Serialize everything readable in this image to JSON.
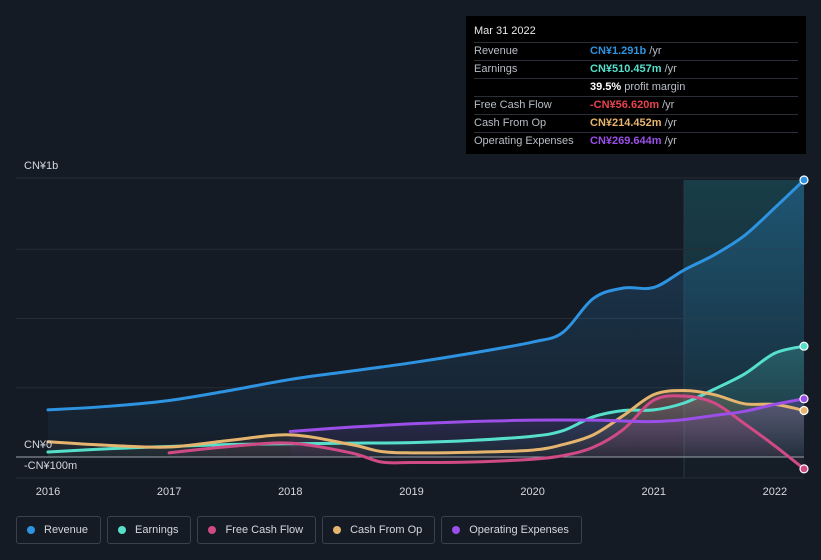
{
  "chart_data": {
    "type": "line",
    "y_labels": {
      "top": "CN¥1b",
      "zero": "CN¥0",
      "bottom": "-CN¥100m"
    },
    "ylim": [
      -100,
      1000
    ],
    "xlim": [
      2015.8,
      2022.24
    ],
    "x_ticks": [
      "2016",
      "2017",
      "2018",
      "2019",
      "2020",
      "2021",
      "2022"
    ],
    "highlight_start": 2021.25,
    "series": [
      {
        "name": "Revenue",
        "key": "revenue",
        "color": "#2e93e0",
        "fill": true,
        "points": [
          [
            2016,
            170
          ],
          [
            2016.5,
            183
          ],
          [
            2017,
            204
          ],
          [
            2017.5,
            240
          ],
          [
            2018,
            280
          ],
          [
            2018.5,
            310
          ],
          [
            2019,
            340
          ],
          [
            2019.5,
            375
          ],
          [
            2020,
            415
          ],
          [
            2020.25,
            450
          ],
          [
            2020.5,
            572
          ],
          [
            2020.75,
            610
          ],
          [
            2021,
            612
          ],
          [
            2021.25,
            675
          ],
          [
            2021.5,
            730
          ],
          [
            2021.75,
            800
          ],
          [
            2022,
            900
          ],
          [
            2022.24,
            1000
          ]
        ]
      },
      {
        "name": "Earnings",
        "key": "earnings",
        "color": "#56e0cc",
        "fill": true,
        "points": [
          [
            2016,
            18
          ],
          [
            2016.5,
            30
          ],
          [
            2017,
            38
          ],
          [
            2017.5,
            45
          ],
          [
            2018,
            48
          ],
          [
            2018.5,
            50
          ],
          [
            2019,
            52
          ],
          [
            2019.5,
            60
          ],
          [
            2020,
            75
          ],
          [
            2020.25,
            95
          ],
          [
            2020.5,
            145
          ],
          [
            2020.75,
            168
          ],
          [
            2021,
            170
          ],
          [
            2021.25,
            195
          ],
          [
            2021.5,
            245
          ],
          [
            2021.75,
            300
          ],
          [
            2022,
            375
          ],
          [
            2022.24,
            400
          ]
        ]
      },
      {
        "name": "Free Cash Flow",
        "key": "fcf",
        "color": "#d04a85",
        "fill": true,
        "points": [
          [
            2017,
            15
          ],
          [
            2017.5,
            38
          ],
          [
            2018,
            50
          ],
          [
            2018.5,
            15
          ],
          [
            2018.75,
            -18
          ],
          [
            2019,
            -20
          ],
          [
            2019.5,
            -18
          ],
          [
            2020,
            -8
          ],
          [
            2020.25,
            5
          ],
          [
            2020.5,
            35
          ],
          [
            2020.75,
            100
          ],
          [
            2021,
            205
          ],
          [
            2021.25,
            220
          ],
          [
            2021.5,
            195
          ],
          [
            2021.75,
            120
          ],
          [
            2022,
            40
          ],
          [
            2022.24,
            -43
          ]
        ]
      },
      {
        "name": "Cash From Op",
        "key": "cfo",
        "color": "#e5b46e",
        "fill": true,
        "points": [
          [
            2016,
            55
          ],
          [
            2016.5,
            42
          ],
          [
            2017,
            36
          ],
          [
            2017.5,
            60
          ],
          [
            2018,
            80
          ],
          [
            2018.5,
            45
          ],
          [
            2018.75,
            20
          ],
          [
            2019,
            15
          ],
          [
            2019.5,
            17
          ],
          [
            2020,
            25
          ],
          [
            2020.25,
            45
          ],
          [
            2020.5,
            80
          ],
          [
            2020.75,
            150
          ],
          [
            2021,
            225
          ],
          [
            2021.25,
            240
          ],
          [
            2021.5,
            225
          ],
          [
            2021.75,
            192
          ],
          [
            2022,
            190
          ],
          [
            2022.24,
            168
          ]
        ]
      },
      {
        "name": "Operating Expenses",
        "key": "opex",
        "color": "#9b4fe8",
        "fill": true,
        "points": [
          [
            2018,
            92
          ],
          [
            2018.5,
            108
          ],
          [
            2019,
            120
          ],
          [
            2019.5,
            128
          ],
          [
            2020,
            133
          ],
          [
            2020.5,
            133
          ],
          [
            2020.75,
            130
          ],
          [
            2021,
            128
          ],
          [
            2021.25,
            135
          ],
          [
            2021.5,
            150
          ],
          [
            2021.75,
            165
          ],
          [
            2022,
            190
          ],
          [
            2022.24,
            210
          ]
        ]
      }
    ]
  },
  "tooltip": {
    "date": "Mar 31 2022",
    "rows": [
      {
        "label": "Revenue",
        "value": "CN¥1.291b",
        "unit": "/yr",
        "color": "#2e93e0"
      },
      {
        "label": "Earnings",
        "value": "CN¥510.457m",
        "unit": "/yr",
        "color": "#56e0cc"
      },
      {
        "label": "",
        "value": "39.5%",
        "unit": "profit margin",
        "color": "#ffffff"
      },
      {
        "label": "Free Cash Flow",
        "value": "-CN¥56.620m",
        "unit": "/yr",
        "color": "#e8424e"
      },
      {
        "label": "Cash From Op",
        "value": "CN¥214.452m",
        "unit": "/yr",
        "color": "#e5b46e"
      },
      {
        "label": "Operating Expenses",
        "value": "CN¥269.644m",
        "unit": "/yr",
        "color": "#9b4fe8"
      }
    ]
  },
  "legend": [
    {
      "label": "Revenue",
      "color": "#2e93e0"
    },
    {
      "label": "Earnings",
      "color": "#56e0cc"
    },
    {
      "label": "Free Cash Flow",
      "color": "#d04a85"
    },
    {
      "label": "Cash From Op",
      "color": "#e5b46e"
    },
    {
      "label": "Operating Expenses",
      "color": "#9b4fe8"
    }
  ]
}
